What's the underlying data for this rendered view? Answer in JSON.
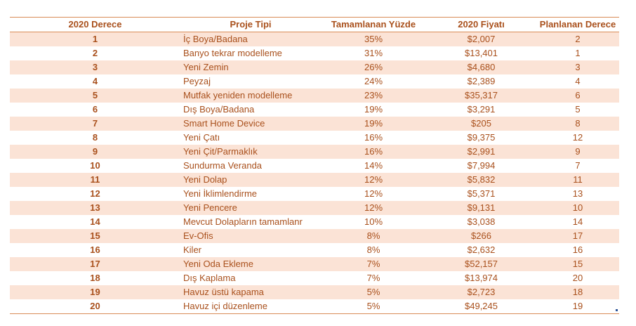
{
  "headers": {
    "rank": "2020 Derece",
    "project": "Proje Tipi",
    "percent": "Tamamlanan Yüzde",
    "price": "2020 Fiyatı",
    "planned": "Planlanan Derece"
  },
  "rows": [
    {
      "rank": "1",
      "project": "İç Boya/Badana",
      "percent": "35%",
      "price": "$2,007",
      "planned": "2"
    },
    {
      "rank": "2",
      "project": "Banyo tekrar modelleme",
      "percent": "31%",
      "price": "$13,401",
      "planned": "1"
    },
    {
      "rank": "3",
      "project": "Yeni Zemin",
      "percent": "26%",
      "price": "$4,680",
      "planned": "3"
    },
    {
      "rank": "4",
      "project": "Peyzaj",
      "percent": "24%",
      "price": "$2,389",
      "planned": "4"
    },
    {
      "rank": "5",
      "project": "Mutfak yeniden modelleme",
      "percent": "23%",
      "price": "$35,317",
      "planned": "6"
    },
    {
      "rank": "6",
      "project": "Dış Boya/Badana",
      "percent": "19%",
      "price": "$3,291",
      "planned": "5"
    },
    {
      "rank": "7",
      "project": "Smart Home Device",
      "percent": "19%",
      "price": "$205",
      "planned": "8"
    },
    {
      "rank": "8",
      "project": "Yeni Çatı",
      "percent": "16%",
      "price": "$9,375",
      "planned": "12"
    },
    {
      "rank": "9",
      "project": "Yeni Çit/Parmaklık",
      "percent": "16%",
      "price": "$2,991",
      "planned": "9"
    },
    {
      "rank": "10",
      "project": "Sundurma Veranda",
      "percent": "14%",
      "price": "$7,994",
      "planned": "7"
    },
    {
      "rank": "11",
      "project": "Yeni Dolap",
      "percent": "12%",
      "price": "$5,832",
      "planned": "11"
    },
    {
      "rank": "12",
      "project": "Yeni İklimlendirme",
      "percent": "12%",
      "price": "$5,371",
      "planned": "13"
    },
    {
      "rank": "13",
      "project": "Yeni Pencere",
      "percent": "12%",
      "price": "$9,131",
      "planned": "10"
    },
    {
      "rank": "14",
      "project": "Mevcut Dolapların tamamlanr",
      "percent": "10%",
      "price": "$3,038",
      "planned": "14"
    },
    {
      "rank": "15",
      "project": "Ev-Ofis",
      "percent": "8%",
      "price": "$266",
      "planned": "17"
    },
    {
      "rank": "16",
      "project": "Kiler",
      "percent": "8%",
      "price": "$2,632",
      "planned": "16"
    },
    {
      "rank": "17",
      "project": "Yeni Oda Ekleme",
      "percent": "7%",
      "price": "$52,157",
      "planned": "15"
    },
    {
      "rank": "18",
      "project": "Dış Kaplama",
      "percent": "7%",
      "price": "$13,974",
      "planned": "20"
    },
    {
      "rank": "19",
      "project": "Havuz üstü kapama",
      "percent": "5%",
      "price": "$2,723",
      "planned": "18"
    },
    {
      "rank": "20",
      "project": "Havuz içi düzenleme",
      "percent": "5%",
      "price": "$49,245",
      "planned": "19"
    }
  ],
  "colors": {
    "text": "#a9501c",
    "band": "#fbe3d6",
    "border": "#d98c57"
  }
}
